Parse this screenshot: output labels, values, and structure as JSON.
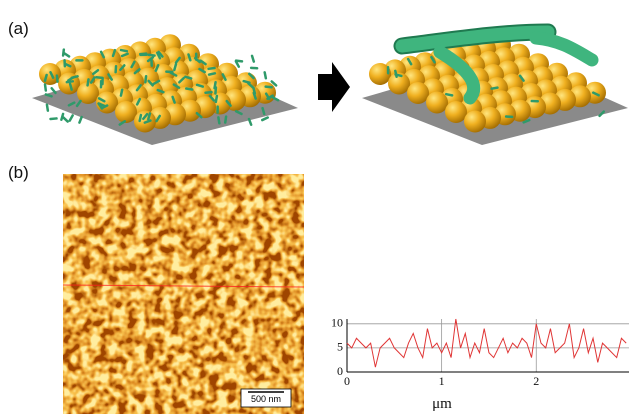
{
  "figure": {
    "panel_a_label": "(a)",
    "panel_b_label": "(b)",
    "scale_bar": "500 nm"
  },
  "chart_data": {
    "type": "line",
    "xlabel": "μm",
    "x": [
      0,
      0.05,
      0.1,
      0.15,
      0.2,
      0.25,
      0.3,
      0.35,
      0.4,
      0.45,
      0.5,
      0.55,
      0.6,
      0.65,
      0.7,
      0.75,
      0.8,
      0.85,
      0.9,
      0.95,
      1,
      1.05,
      1.1,
      1.15,
      1.2,
      1.25,
      1.3,
      1.35,
      1.4,
      1.45,
      1.5,
      1.55,
      1.6,
      1.65,
      1.7,
      1.75,
      1.8,
      1.85,
      1.9,
      1.95,
      2,
      2.05,
      2.1,
      2.15,
      2.2,
      2.25,
      2.3,
      2.35,
      2.4,
      2.45,
      2.5,
      2.55,
      2.6,
      2.65,
      2.7,
      2.75,
      2.8,
      2.85,
      2.9,
      2.95
    ],
    "values": [
      6,
      5,
      7,
      6,
      5,
      6,
      1,
      5,
      6,
      7,
      5,
      4,
      3,
      6,
      8,
      5,
      3,
      9,
      5,
      6,
      4,
      6,
      3,
      11,
      5,
      8,
      3,
      6,
      4,
      9,
      4,
      3,
      5,
      7,
      4,
      6,
      5,
      7,
      6,
      3,
      10,
      6,
      5,
      9,
      4,
      5,
      6,
      10,
      3,
      5,
      9,
      4,
      7,
      2,
      6,
      5,
      4,
      3,
      7,
      6
    ],
    "color": "#e03535",
    "xlim": [
      0,
      2.98
    ],
    "ylim": [
      0,
      11
    ],
    "xticks": [
      0,
      1,
      2
    ],
    "yticks": [
      0,
      5,
      10
    ],
    "grid": true
  }
}
